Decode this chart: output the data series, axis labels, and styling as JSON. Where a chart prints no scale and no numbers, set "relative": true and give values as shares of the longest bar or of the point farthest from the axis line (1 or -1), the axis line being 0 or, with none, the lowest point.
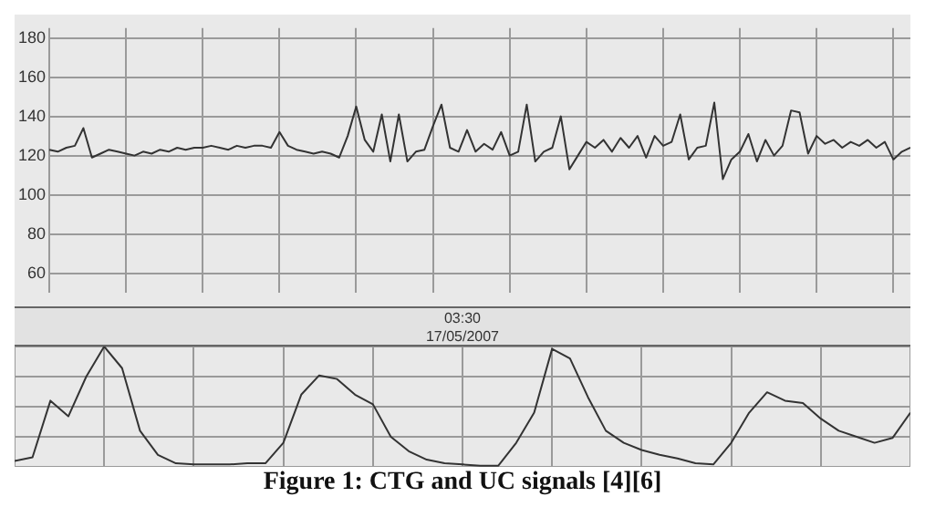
{
  "chart_data": [
    {
      "type": "line",
      "categories": [
        null,
        null,
        null,
        null,
        null,
        null,
        null,
        null,
        null,
        null,
        null,
        null,
        null,
        null,
        null,
        null,
        null,
        null,
        null,
        null,
        null,
        null,
        null,
        null,
        null,
        null,
        null,
        null,
        null,
        null,
        null,
        null,
        null,
        null,
        null,
        null,
        null,
        null,
        null,
        null,
        null,
        null,
        null,
        null,
        null,
        null,
        null,
        null,
        null,
        null,
        null,
        null,
        null,
        null,
        null,
        null,
        null,
        null,
        null,
        null,
        null,
        null,
        null,
        null,
        null,
        null,
        null,
        null,
        null,
        null,
        null,
        null,
        null,
        null,
        null,
        null,
        null,
        null,
        null,
        null,
        null,
        null,
        null,
        null,
        null,
        null,
        null,
        null,
        null,
        null,
        null,
        null,
        null,
        null,
        null,
        null,
        null,
        null,
        null,
        null,
        null,
        null
      ],
      "series": [
        {
          "color": "#333333",
          "values": [
            123,
            122,
            124,
            125,
            134,
            119,
            121,
            123,
            122,
            121,
            120,
            122,
            121,
            123,
            122,
            124,
            123,
            124,
            124,
            125,
            124,
            123,
            125,
            124,
            125,
            125,
            124,
            132,
            125,
            123,
            122,
            121,
            122,
            121,
            119,
            130,
            145,
            128,
            122,
            141,
            117,
            141,
            117,
            122,
            123,
            135,
            146,
            124,
            122,
            133,
            122,
            126,
            123,
            132,
            120,
            122,
            146,
            117,
            122,
            124,
            140,
            113,
            120,
            127,
            124,
            128,
            122,
            129,
            124,
            130,
            119,
            130,
            125,
            127,
            141,
            118,
            124,
            125,
            147,
            108,
            118,
            122,
            131,
            117,
            128,
            120,
            125,
            143,
            142,
            121,
            130,
            126,
            128,
            124,
            127,
            125,
            128,
            124,
            127,
            118,
            122,
            124
          ]
        }
      ],
      "ylim": [
        50,
        185
      ],
      "yticks": [
        60,
        80,
        100,
        120,
        140,
        160,
        180
      ],
      "grid": true,
      "marker": "none",
      "line_style": "solid",
      "tick_labels": "y",
      "annotations": [
        "03:30",
        "17/05/2007"
      ]
    },
    {
      "type": "line",
      "relative": true,
      "categories": [
        null,
        null,
        null,
        null,
        null,
        null,
        null,
        null,
        null,
        null,
        null,
        null,
        null,
        null,
        null,
        null,
        null,
        null,
        null,
        null,
        null,
        null,
        null,
        null,
        null,
        null,
        null,
        null,
        null,
        null,
        null,
        null,
        null,
        null,
        null,
        null,
        null,
        null,
        null,
        null,
        null,
        null,
        null,
        null,
        null,
        null,
        null,
        null,
        null,
        null,
        null
      ],
      "series": [
        {
          "color": "#333333",
          "values": [
            0.05,
            0.08,
            0.55,
            0.42,
            0.75,
            1.0,
            0.82,
            0.3,
            0.1,
            0.03,
            0.02,
            0.02,
            0.02,
            0.03,
            0.03,
            0.2,
            0.6,
            0.76,
            0.73,
            0.6,
            0.52,
            0.25,
            0.13,
            0.06,
            0.03,
            0.02,
            0.01,
            0.01,
            0.2,
            0.45,
            0.98,
            0.9,
            0.58,
            0.3,
            0.2,
            0.14,
            0.1,
            0.07,
            0.03,
            0.02,
            0.2,
            0.45,
            0.62,
            0.55,
            0.53,
            0.4,
            0.3,
            0.25,
            0.2,
            0.24,
            0.45
          ]
        }
      ],
      "grid": true,
      "marker": "none",
      "line_style": "solid",
      "tick_labels": false,
      "annotations": [
        "Figure 1: CTG and UC signals [4][6]"
      ]
    }
  ]
}
